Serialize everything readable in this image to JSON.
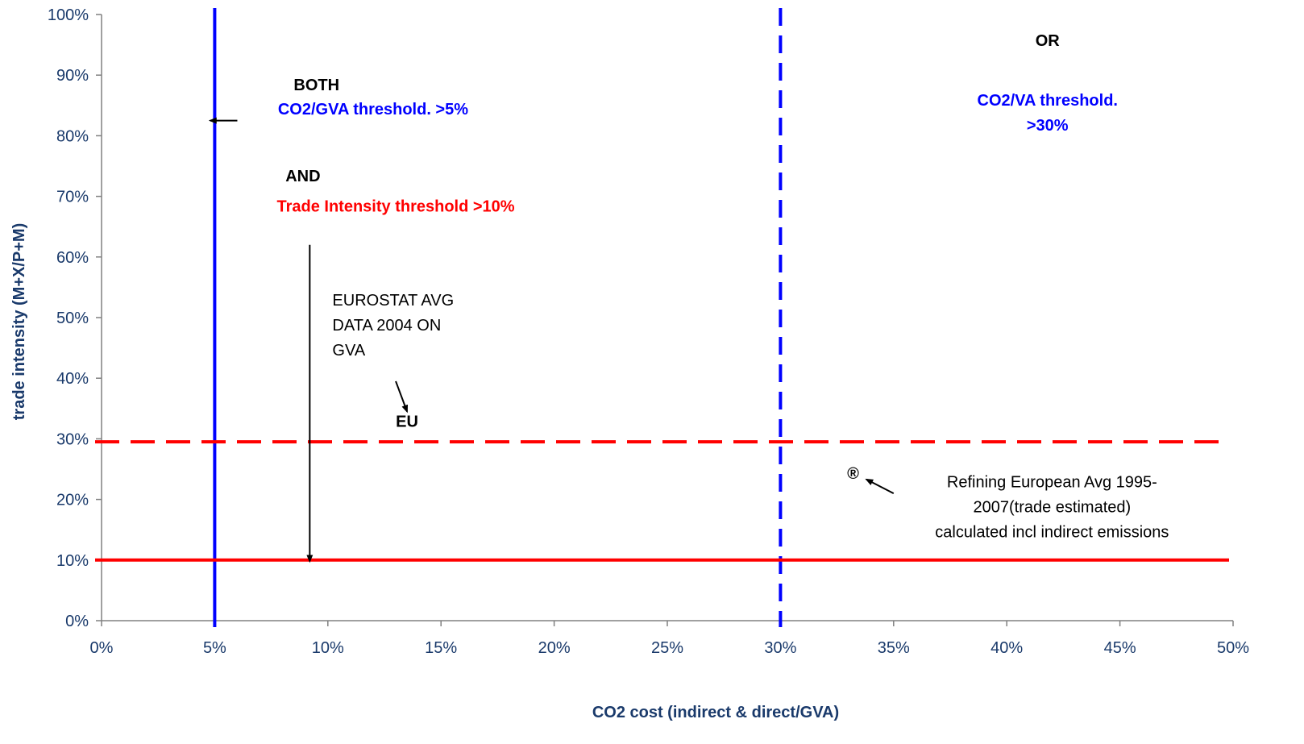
{
  "chart_data": {
    "type": "scatter",
    "title": "",
    "xlabel": "CO2 cost (indirect & direct/GVA)",
    "ylabel": "trade intensity (M+X/P+M)",
    "xlim": [
      0,
      50
    ],
    "ylim": [
      0,
      100
    ],
    "x_ticks": [
      "0%",
      "5%",
      "10%",
      "15%",
      "20%",
      "25%",
      "30%",
      "35%",
      "40%",
      "45%",
      "50%"
    ],
    "y_ticks": [
      "0%",
      "10%",
      "20%",
      "30%",
      "40%",
      "50%",
      "60%",
      "70%",
      "80%",
      "90%",
      "100%"
    ],
    "grid": false,
    "reference_lines": [
      {
        "orientation": "vertical",
        "value": 5,
        "style": "solid",
        "color": "#0000ff"
      },
      {
        "orientation": "vertical",
        "value": 30,
        "style": "dashed",
        "color": "#0000ff"
      },
      {
        "orientation": "horizontal",
        "value": 10,
        "style": "solid",
        "color": "#ff0000"
      },
      {
        "orientation": "horizontal",
        "value": 29.5,
        "style": "dashed",
        "color": "#ff0000"
      }
    ],
    "points": [
      {
        "label": "®",
        "x": 33.2,
        "y": 24.5
      }
    ],
    "annotations": [
      {
        "text": "BOTH",
        "x": 9.5,
        "y": 87.5,
        "color": "#000000",
        "bold": true
      },
      {
        "text": "CO2/GVA threshold. >5%",
        "x": 12,
        "y": 83.5,
        "color": "#0000ff",
        "bold": true
      },
      {
        "text": "AND",
        "x": 8.9,
        "y": 72.5,
        "color": "#000000",
        "bold": true
      },
      {
        "text": "Trade Intensity threshold >10%",
        "x": 13,
        "y": 67.5,
        "color": "#ff0000",
        "bold": true
      },
      {
        "lines": [
          "EUROSTAT AVG",
          "DATA 2004 ON",
          "GVA"
        ],
        "x": 10.2,
        "y": 52,
        "color": "#000000",
        "bold": false
      },
      {
        "text": "EU",
        "x": 13.5,
        "y": 32,
        "color": "#000000",
        "bold": true
      },
      {
        "text": "OR",
        "x": 41.8,
        "y": 94.8,
        "color": "#000000",
        "bold": true
      },
      {
        "lines": [
          "CO2/VA threshold.",
          ">30%"
        ],
        "x": 41.8,
        "y": 85,
        "color": "#0000ff",
        "bold": true
      },
      {
        "lines": [
          "Refining European Avg 1995-",
          "2007(trade estimated)",
          "calculated incl indirect emissions"
        ],
        "x": 42,
        "y": 22,
        "color": "#000000",
        "bold": false
      }
    ],
    "arrows": [
      {
        "from": [
          6,
          82.5
        ],
        "to": [
          4.8,
          82.5
        ]
      },
      {
        "from": [
          9.2,
          62
        ],
        "to": [
          9.2,
          9.8
        ]
      },
      {
        "from": [
          13,
          39.5
        ],
        "to": [
          13.5,
          34.5
        ]
      },
      {
        "from": [
          35,
          21
        ],
        "to": [
          33.8,
          23.3
        ]
      }
    ]
  },
  "colors": {
    "axis_text": "#1a3a6b",
    "blue": "#0000ff",
    "red": "#ff0000",
    "axis": "#808080"
  }
}
